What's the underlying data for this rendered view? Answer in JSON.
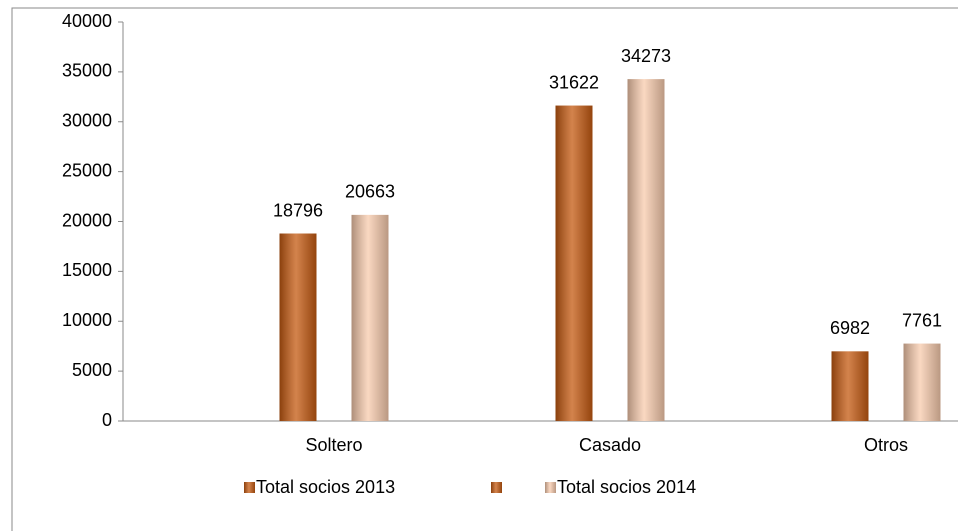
{
  "chart_data": {
    "type": "bar",
    "categories": [
      "Soltero",
      "Casado",
      "Otros"
    ],
    "series": [
      {
        "name": "Total socios 2013",
        "color": "#c55a11",
        "values": [
          18796,
          31622,
          6982
        ]
      },
      {
        "name": "Total socios 2014",
        "color": "#f8cbad",
        "values": [
          20663,
          34273,
          7761
        ]
      }
    ],
    "ylim": [
      0,
      40000
    ],
    "yticks": [
      0,
      5000,
      10000,
      15000,
      20000,
      25000,
      30000,
      35000,
      40000
    ],
    "legend": "bottom"
  }
}
